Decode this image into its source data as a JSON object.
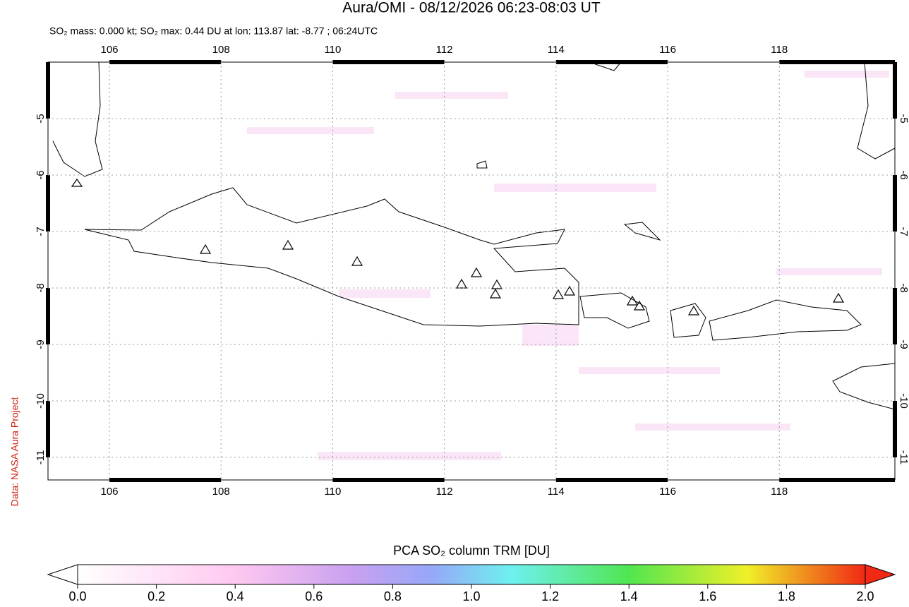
{
  "title": "Aura/OMI - 08/12/2026 06:23-08:03 UT",
  "subtitle": "SO₂ mass: 0.000 kt; SO₂ max: 0.44 DU at lon: 113.87 lat: -8.77 ; 06:24UTC",
  "credit": "Data: NASA Aura Project",
  "map": {
    "xlim": [
      104.9,
      120.07
    ],
    "ylim": [
      -11.4,
      -4
    ],
    "xticks": [
      106,
      108,
      110,
      112,
      114,
      116,
      118
    ],
    "yticks": [
      -5,
      -6,
      -7,
      -8,
      -9,
      -10,
      -11
    ],
    "grid": true
  },
  "colorbar": {
    "label": "PCA SO₂ column TRM [DU]",
    "lim": [
      0,
      2
    ],
    "ticks": [
      {
        "value": 0,
        "label": "0.0"
      },
      {
        "value": 0.2,
        "label": "0.2"
      },
      {
        "value": 0.4,
        "label": "0.4"
      },
      {
        "value": 0.6,
        "label": "0.6"
      },
      {
        "value": 0.8,
        "label": "0.8"
      },
      {
        "value": 1,
        "label": "1.0"
      },
      {
        "value": 1.2,
        "label": "1.2"
      },
      {
        "value": 1.4,
        "label": "1.4"
      },
      {
        "value": 1.6,
        "label": "1.6"
      },
      {
        "value": 1.8,
        "label": "1.8"
      },
      {
        "value": 2,
        "label": "2.0"
      }
    ]
  }
}
